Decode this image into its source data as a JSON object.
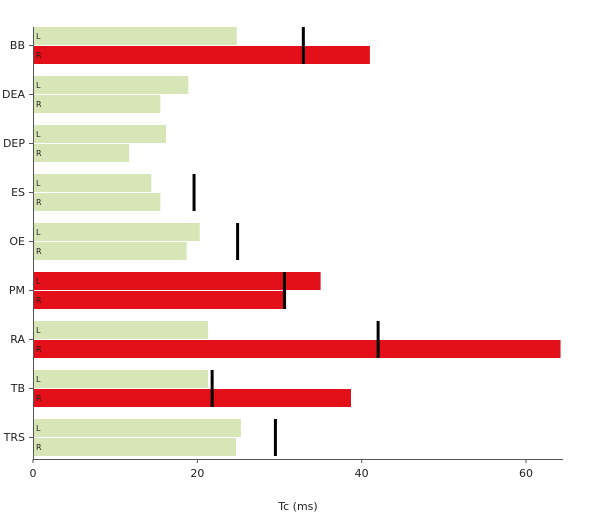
{
  "chart_data": {
    "type": "bar",
    "orientation": "horizontal",
    "title": "",
    "xlabel": "Tc (ms)",
    "ylabel": "",
    "xlim": [
      0,
      64.5
    ],
    "xticks": [
      0,
      20,
      40,
      60
    ],
    "grid": false,
    "legend": "none",
    "categories": [
      "BB",
      "DEA",
      "DEP",
      "ES",
      "OE",
      "PM",
      "RA",
      "TB",
      "TRS"
    ],
    "sides": [
      "L",
      "R"
    ],
    "colors": {
      "normal": "#d8e6b7",
      "abnormal": "#e3101a",
      "reference_line": "#000000",
      "axis": "#555555"
    },
    "rows": [
      {
        "muscle": "BB",
        "L": {
          "value": 24.8,
          "status": "normal"
        },
        "R": {
          "value": 41.0,
          "status": "abnormal"
        },
        "reference": 32.9
      },
      {
        "muscle": "DEA",
        "L": {
          "value": 18.9,
          "status": "normal"
        },
        "R": {
          "value": 15.5,
          "status": "normal"
        },
        "reference": null
      },
      {
        "muscle": "DEP",
        "L": {
          "value": 16.2,
          "status": "normal"
        },
        "R": {
          "value": 11.7,
          "status": "normal"
        },
        "reference": null
      },
      {
        "muscle": "ES",
        "L": {
          "value": 14.4,
          "status": "normal"
        },
        "R": {
          "value": 15.5,
          "status": "normal"
        },
        "reference": 19.6
      },
      {
        "muscle": "OE",
        "L": {
          "value": 20.3,
          "status": "normal"
        },
        "R": {
          "value": 18.7,
          "status": "normal"
        },
        "reference": 24.9
      },
      {
        "muscle": "PM",
        "L": {
          "value": 35.0,
          "status": "abnormal"
        },
        "R": {
          "value": 30.8,
          "status": "abnormal"
        },
        "reference": 30.6
      },
      {
        "muscle": "RA",
        "L": {
          "value": 21.3,
          "status": "normal"
        },
        "R": {
          "value": 64.2,
          "status": "abnormal"
        },
        "reference": 42.0
      },
      {
        "muscle": "TB",
        "L": {
          "value": 21.3,
          "status": "normal"
        },
        "R": {
          "value": 38.7,
          "status": "abnormal"
        },
        "reference": 21.8
      },
      {
        "muscle": "TRS",
        "L": {
          "value": 25.3,
          "status": "normal"
        },
        "R": {
          "value": 24.7,
          "status": "normal"
        },
        "reference": 29.5
      }
    ]
  }
}
